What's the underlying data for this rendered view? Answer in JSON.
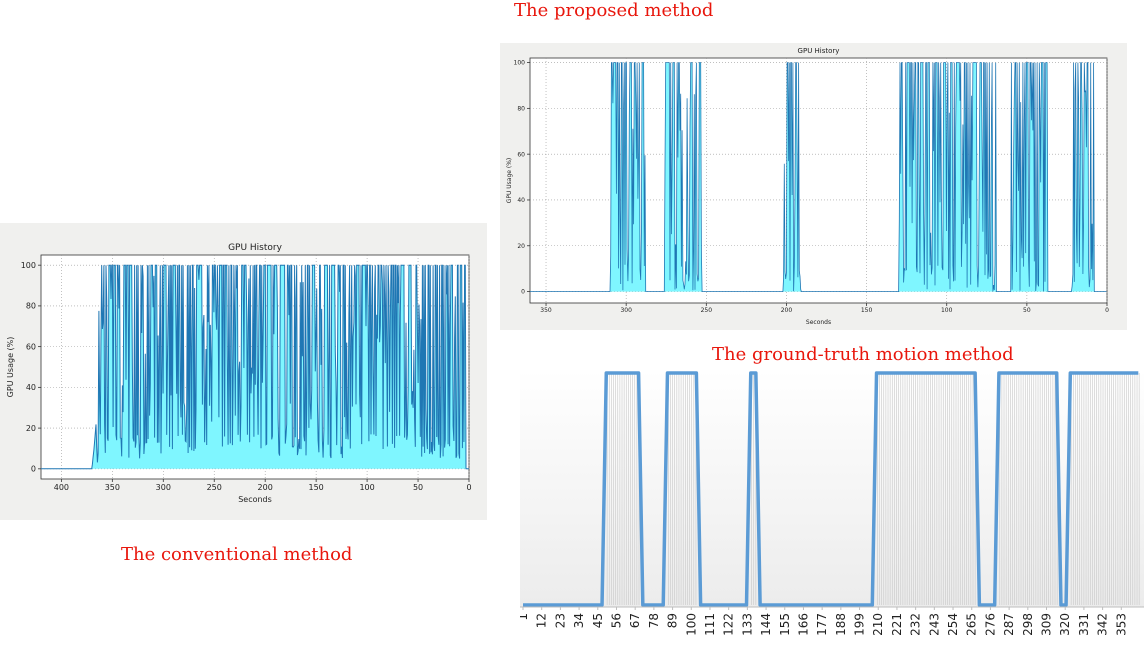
{
  "captions": {
    "conventional": "The conventional method",
    "proposed": "The proposed method",
    "ground_truth": "The ground-truth motion method"
  },
  "chart_data": [
    {
      "id": "conventional",
      "type": "area",
      "title": "GPU History",
      "xlabel": "Seconds",
      "ylabel": "GPU Usage (%)",
      "xlim": [
        420,
        0
      ],
      "ylim": [
        -5,
        105
      ],
      "xticks": [
        400,
        350,
        300,
        250,
        200,
        150,
        100,
        50,
        0
      ],
      "yticks": [
        0,
        20,
        40,
        60,
        80,
        100
      ],
      "grid": true,
      "colors": {
        "line": "#1f77b4",
        "fill": "#7ff6ff"
      },
      "points": [
        [
          420,
          0
        ],
        [
          370,
          0
        ],
        [
          368,
          10
        ],
        [
          366,
          22
        ],
        [
          365,
          5
        ],
        [
          364,
          0
        ],
        [
          363,
          100
        ],
        [
          360,
          100
        ],
        [
          355,
          80
        ],
        [
          350,
          100
        ],
        [
          340,
          60
        ],
        [
          330,
          100
        ],
        [
          320,
          90
        ],
        [
          300,
          100
        ],
        [
          280,
          85
        ],
        [
          250,
          100
        ],
        [
          220,
          70
        ],
        [
          200,
          100
        ],
        [
          180,
          90
        ],
        [
          150,
          100
        ],
        [
          120,
          80
        ],
        [
          100,
          100
        ],
        [
          80,
          95
        ],
        [
          50,
          100
        ],
        [
          30,
          90
        ],
        [
          10,
          100
        ],
        [
          8,
          20
        ],
        [
          5,
          10
        ],
        [
          3,
          5
        ],
        [
          0,
          2
        ]
      ],
      "active_segments": [
        [
          363,
          3
        ]
      ],
      "baseline_level": 5
    },
    {
      "id": "proposed",
      "type": "area",
      "title": "GPU History",
      "xlabel": "Seconds",
      "ylabel": "GPU Usage (%)",
      "xlim": [
        360,
        0
      ],
      "ylim": [
        -5,
        102
      ],
      "xticks": [
        350,
        300,
        250,
        200,
        150,
        100,
        50,
        0
      ],
      "yticks": [
        0,
        20,
        40,
        60,
        80,
        100
      ],
      "grid": true,
      "colors": {
        "line": "#1f77b4",
        "fill": "#7ff6ff"
      },
      "active_segments": [
        [
          310,
          288
        ],
        [
          276,
          253
        ],
        [
          202,
          191
        ],
        [
          130,
          69
        ],
        [
          60,
          37
        ],
        [
          22,
          8
        ]
      ]
    },
    {
      "id": "ground_truth",
      "type": "line",
      "title": "",
      "xlabel": "",
      "ylabel": "",
      "colors": {
        "line": "#5b9bd5"
      },
      "categories": [
        "1",
        "12",
        "23",
        "34",
        "45",
        "56",
        "67",
        "78",
        "89",
        "100",
        "111",
        "122",
        "133",
        "144",
        "155",
        "166",
        "177",
        "188",
        "199",
        "210",
        "221",
        "232",
        "243",
        "254",
        "265",
        "276",
        "287",
        "298",
        "309",
        "320",
        "331",
        "342",
        "353"
      ],
      "xrange": [
        1,
        364
      ],
      "on_segments": [
        [
          49,
          70
        ],
        [
          85,
          104
        ],
        [
          134,
          139
        ],
        [
          208,
          268
        ],
        [
          280,
          316
        ],
        [
          322,
          364
        ]
      ]
    }
  ]
}
